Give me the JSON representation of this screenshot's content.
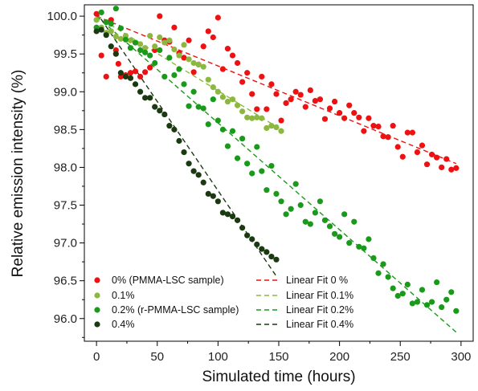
{
  "chart_data": {
    "type": "scatter",
    "xlabel": "Simulated time (hours)",
    "ylabel": "Relative emission intensity (%)",
    "xlim": [
      -10,
      310
    ],
    "ylim": [
      95.7,
      100.15
    ],
    "xticks": [
      0,
      50,
      100,
      150,
      200,
      250,
      300
    ],
    "yticks": [
      96.0,
      96.5,
      97.0,
      97.5,
      98.0,
      98.5,
      99.0,
      99.5,
      100.0
    ],
    "ytick_labels": [
      "96.0",
      "96.5",
      "97.0",
      "97.5",
      "98.0",
      "98.5",
      "99.0",
      "99.5",
      "100.0"
    ],
    "grid": false,
    "legend_placement": "bottom-left",
    "series": [
      {
        "name": "0% (PMMA-LSC sample)",
        "color": "#ee1111",
        "points": [
          [
            0,
            100.03
          ],
          [
            4,
            99.48
          ],
          [
            8,
            99.2
          ],
          [
            12,
            99.95
          ],
          [
            16,
            99.55
          ],
          [
            18,
            99.37
          ],
          [
            20,
            99.2
          ],
          [
            24,
            99.22
          ],
          [
            28,
            99.25
          ],
          [
            32,
            99.27
          ],
          [
            36,
            99.2
          ],
          [
            40,
            99.26
          ],
          [
            44,
            99.32
          ],
          [
            48,
            99.55
          ],
          [
            52,
            100.0
          ],
          [
            56,
            99.68
          ],
          [
            60,
            99.66
          ],
          [
            64,
            99.85
          ],
          [
            68,
            99.51
          ],
          [
            72,
            99.45
          ],
          [
            76,
            99.68
          ],
          [
            80,
            99.26
          ],
          [
            84,
            99.36
          ],
          [
            88,
            99.6
          ],
          [
            92,
            99.8
          ],
          [
            96,
            99.72
          ],
          [
            100,
            99.98
          ],
          [
            104,
            99.3
          ],
          [
            108,
            99.57
          ],
          [
            112,
            99.48
          ],
          [
            116,
            99.38
          ],
          [
            120,
            99.13
          ],
          [
            124,
            99.25
          ],
          [
            128,
            98.97
          ],
          [
            132,
            98.77
          ],
          [
            136,
            99.2
          ],
          [
            140,
            98.77
          ],
          [
            144,
            99.1
          ],
          [
            148,
            98.97
          ],
          [
            152,
            98.62
          ],
          [
            156,
            98.85
          ],
          [
            160,
            98.9
          ],
          [
            164,
            99.0
          ],
          [
            168,
            98.96
          ],
          [
            172,
            98.8
          ],
          [
            176,
            99.02
          ],
          [
            180,
            98.88
          ],
          [
            184,
            98.9
          ],
          [
            188,
            98.64
          ],
          [
            192,
            98.78
          ],
          [
            196,
            98.87
          ],
          [
            200,
            98.72
          ],
          [
            204,
            98.65
          ],
          [
            208,
            98.82
          ],
          [
            212,
            98.72
          ],
          [
            216,
            98.66
          ],
          [
            220,
            98.48
          ],
          [
            224,
            98.65
          ],
          [
            228,
            98.55
          ],
          [
            232,
            98.54
          ],
          [
            236,
            98.41
          ],
          [
            240,
            98.4
          ],
          [
            244,
            98.55
          ],
          [
            248,
            98.27
          ],
          [
            252,
            98.14
          ],
          [
            256,
            98.46
          ],
          [
            260,
            98.46
          ],
          [
            264,
            98.2
          ],
          [
            268,
            98.29
          ],
          [
            272,
            98.04
          ],
          [
            276,
            98.17
          ],
          [
            280,
            98.13
          ],
          [
            284,
            98.0
          ],
          [
            288,
            98.11
          ],
          [
            292,
            97.97
          ],
          [
            296,
            97.99
          ]
        ]
      },
      {
        "name": "0.1%",
        "color": "#8db840",
        "points": [
          [
            0,
            99.95
          ],
          [
            4,
            99.85
          ],
          [
            8,
            99.78
          ],
          [
            12,
            99.8
          ],
          [
            16,
            99.73
          ],
          [
            20,
            99.7
          ],
          [
            24,
            99.74
          ],
          [
            28,
            99.68
          ],
          [
            32,
            99.65
          ],
          [
            36,
            99.63
          ],
          [
            40,
            99.58
          ],
          [
            44,
            99.74
          ],
          [
            48,
            99.6
          ],
          [
            52,
            99.72
          ],
          [
            56,
            99.65
          ],
          [
            60,
            99.68
          ],
          [
            64,
            99.56
          ],
          [
            68,
            99.48
          ],
          [
            72,
            99.62
          ],
          [
            76,
            99.43
          ],
          [
            80,
            99.38
          ],
          [
            84,
            99.36
          ],
          [
            88,
            99.33
          ],
          [
            92,
            99.16
          ],
          [
            96,
            99.06
          ],
          [
            100,
            99.0
          ],
          [
            104,
            98.93
          ],
          [
            108,
            98.87
          ],
          [
            112,
            98.9
          ],
          [
            116,
            98.82
          ],
          [
            120,
            98.74
          ],
          [
            124,
            98.66
          ],
          [
            128,
            98.65
          ],
          [
            132,
            98.66
          ],
          [
            136,
            98.65
          ],
          [
            140,
            98.52
          ],
          [
            144,
            98.55
          ],
          [
            148,
            98.53
          ],
          [
            152,
            98.48
          ]
        ]
      },
      {
        "name": "0.2% (r-PMMA-LSC sample)",
        "color": "#1a9a1a",
        "points": [
          [
            0,
            99.85
          ],
          [
            4,
            100.05
          ],
          [
            8,
            99.92
          ],
          [
            12,
            99.9
          ],
          [
            16,
            100.1
          ],
          [
            20,
            99.84
          ],
          [
            24,
            99.69
          ],
          [
            28,
            99.58
          ],
          [
            32,
            99.65
          ],
          [
            36,
            99.55
          ],
          [
            40,
            99.52
          ],
          [
            44,
            99.48
          ],
          [
            48,
            99.38
          ],
          [
            52,
            99.55
          ],
          [
            56,
            99.2
          ],
          [
            60,
            99.45
          ],
          [
            64,
            99.22
          ],
          [
            68,
            99.3
          ],
          [
            72,
            99.1
          ],
          [
            76,
            98.81
          ],
          [
            80,
            99.0
          ],
          [
            84,
            98.8
          ],
          [
            88,
            98.78
          ],
          [
            92,
            98.57
          ],
          [
            96,
            98.9
          ],
          [
            100,
            98.62
          ],
          [
            104,
            98.5
          ],
          [
            108,
            98.28
          ],
          [
            112,
            98.48
          ],
          [
            116,
            98.12
          ],
          [
            120,
            98.38
          ],
          [
            124,
            98.05
          ],
          [
            128,
            97.92
          ],
          [
            132,
            98.27
          ],
          [
            136,
            97.95
          ],
          [
            140,
            97.7
          ],
          [
            144,
            98.02
          ],
          [
            148,
            97.65
          ],
          [
            152,
            97.55
          ],
          [
            156,
            97.38
          ],
          [
            160,
            97.45
          ],
          [
            164,
            97.78
          ],
          [
            168,
            97.5
          ],
          [
            172,
            97.28
          ],
          [
            176,
            97.25
          ],
          [
            180,
            97.4
          ],
          [
            184,
            97.55
          ],
          [
            188,
            97.3
          ],
          [
            192,
            97.22
          ],
          [
            196,
            97.12
          ],
          [
            200,
            97.08
          ],
          [
            204,
            97.38
          ],
          [
            208,
            97.0
          ],
          [
            212,
            97.28
          ],
          [
            216,
            96.95
          ],
          [
            220,
            96.93
          ],
          [
            224,
            97.05
          ],
          [
            228,
            96.8
          ],
          [
            232,
            96.6
          ],
          [
            236,
            96.72
          ],
          [
            240,
            96.55
          ],
          [
            244,
            96.4
          ],
          [
            248,
            96.3
          ],
          [
            252,
            96.33
          ],
          [
            256,
            96.45
          ],
          [
            260,
            96.2
          ],
          [
            264,
            96.22
          ],
          [
            268,
            96.38
          ],
          [
            272,
            96.18
          ],
          [
            276,
            96.22
          ],
          [
            280,
            96.48
          ],
          [
            284,
            96.15
          ],
          [
            288,
            96.25
          ],
          [
            292,
            96.35
          ],
          [
            296,
            96.1
          ]
        ]
      },
      {
        "name": "0.4%",
        "color": "#1c3a12",
        "points": [
          [
            0,
            99.8
          ],
          [
            4,
            99.82
          ],
          [
            8,
            99.75
          ],
          [
            12,
            99.6
          ],
          [
            16,
            99.5
          ],
          [
            20,
            99.25
          ],
          [
            24,
            99.2
          ],
          [
            28,
            99.18
          ],
          [
            32,
            99.1
          ],
          [
            36,
            99.0
          ],
          [
            40,
            98.92
          ],
          [
            44,
            98.92
          ],
          [
            48,
            98.8
          ],
          [
            52,
            98.75
          ],
          [
            56,
            98.7
          ],
          [
            60,
            98.55
          ],
          [
            64,
            98.5
          ],
          [
            68,
            98.35
          ],
          [
            72,
            98.2
          ],
          [
            76,
            98.05
          ],
          [
            80,
            97.95
          ],
          [
            84,
            97.9
          ],
          [
            88,
            97.8
          ],
          [
            92,
            97.65
          ],
          [
            96,
            97.62
          ],
          [
            100,
            97.55
          ],
          [
            104,
            97.4
          ],
          [
            108,
            97.38
          ],
          [
            112,
            97.35
          ],
          [
            116,
            97.3
          ],
          [
            120,
            97.2
          ],
          [
            124,
            97.1
          ],
          [
            128,
            97.05
          ],
          [
            132,
            96.98
          ],
          [
            136,
            96.92
          ],
          [
            140,
            96.88
          ],
          [
            144,
            96.82
          ],
          [
            148,
            96.78
          ]
        ]
      }
    ],
    "fits": [
      {
        "name": "Linear Fit 0 %",
        "color": "#ee1111",
        "x": [
          0,
          296
        ],
        "y": [
          100.0,
          98.05
        ]
      },
      {
        "name": "Linear Fit 0.1%",
        "color": "#8db840",
        "x": [
          0,
          152
        ],
        "y": [
          100.0,
          98.5
        ]
      },
      {
        "name": "Linear Fit 0.2%",
        "color": "#1a9a1a",
        "x": [
          0,
          296
        ],
        "y": [
          100.0,
          95.82
        ]
      },
      {
        "name": "Linear Fit 0.4%",
        "color": "#1c3a12",
        "x": [
          0,
          148
        ],
        "y": [
          100.05,
          96.56
        ]
      }
    ]
  }
}
